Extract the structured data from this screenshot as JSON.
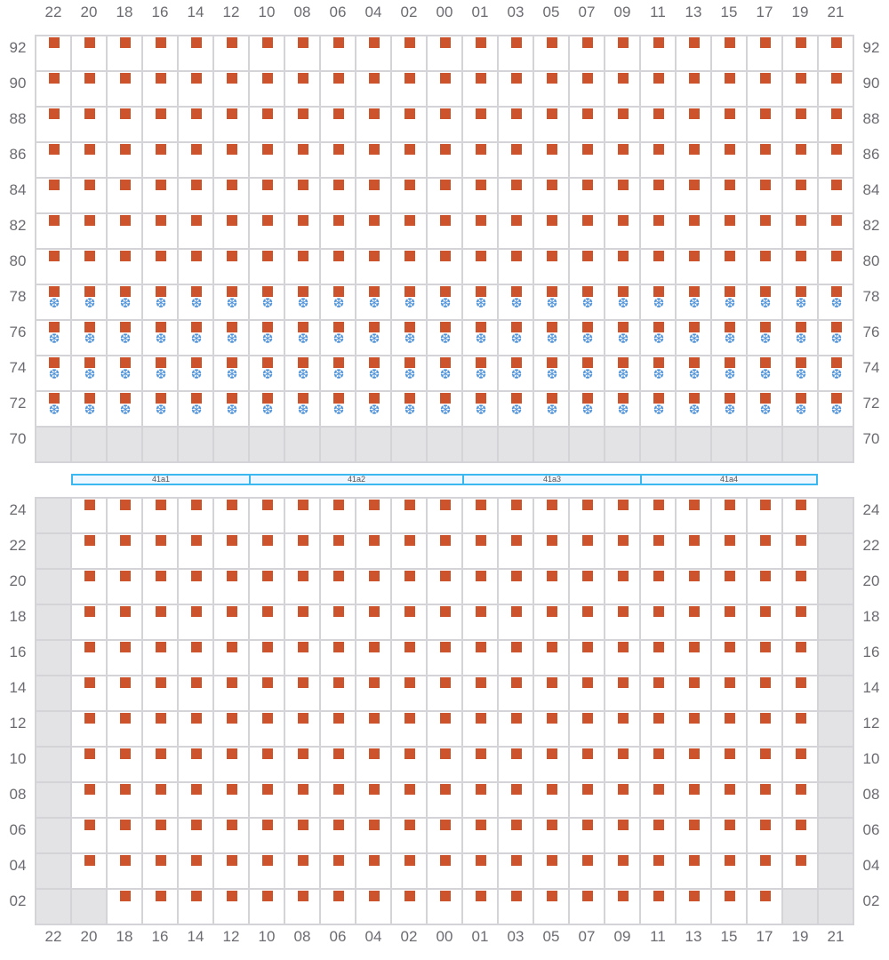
{
  "columns": [
    "22",
    "20",
    "18",
    "16",
    "14",
    "12",
    "10",
    "08",
    "06",
    "04",
    "02",
    "00",
    "01",
    "03",
    "05",
    "07",
    "09",
    "11",
    "13",
    "15",
    "17",
    "19",
    "21"
  ],
  "legend": {
    "m": "marker",
    "s": "marker+snowflake-icon",
    "g": "unavailable",
    "e": "empty"
  },
  "colors": {
    "marker": "#cc532b",
    "snowflake": "#4a90d9",
    "unavailable": "#e3e3e6",
    "band_border": "#3bb8f0"
  },
  "top": {
    "rows": [
      {
        "label": "92",
        "cells": "mmmmmmmmmmmmmmmmmmmmmmm"
      },
      {
        "label": "90",
        "cells": "mmmmmmmmmmmmmmmmmmmmmmm"
      },
      {
        "label": "88",
        "cells": "mmmmmmmmmmmmmmmmmmmmmmm"
      },
      {
        "label": "86",
        "cells": "mmmmmmmmmmmmmmmmmmmmmmm"
      },
      {
        "label": "84",
        "cells": "mmmmmmmmmmmmmmmmmmmmmmm"
      },
      {
        "label": "82",
        "cells": "mmmmmmmmmmmmmmmmmmmmmmm"
      },
      {
        "label": "80",
        "cells": "mmmmmmmmmmmmmmmmmmmmmmm"
      },
      {
        "label": "78",
        "cells": "sssssssssssssssssssssss"
      },
      {
        "label": "76",
        "cells": "sssssssssssssssssssssss"
      },
      {
        "label": "74",
        "cells": "sssssssssssssssssssssss"
      },
      {
        "label": "72",
        "cells": "sssssssssssssssssssssss"
      },
      {
        "label": "70",
        "cells": "ggggggggggggggggggggggg"
      }
    ]
  },
  "bands": [
    {
      "label": "41a1"
    },
    {
      "label": "41a2"
    },
    {
      "label": "41a3"
    },
    {
      "label": "41a4"
    }
  ],
  "bottom": {
    "rows": [
      {
        "label": "24",
        "cells": "gmmmmmmmmmmmmmmmmmmmmmg"
      },
      {
        "label": "22",
        "cells": "gmmmmmmmmmmmmmmmmmmmmmg"
      },
      {
        "label": "20",
        "cells": "gmmmmmmmmmmmmmmmmmmmmmg"
      },
      {
        "label": "18",
        "cells": "gmmmmmmmmmmmmmmmmmmmmmg"
      },
      {
        "label": "16",
        "cells": "gmmmmmmmmmmmmmmmmmmmmmg"
      },
      {
        "label": "14",
        "cells": "gmmmmmmmmmmmmmmmmmmmmmg"
      },
      {
        "label": "12",
        "cells": "gmmmmmmmmmmmmmmmmmmmmmg"
      },
      {
        "label": "10",
        "cells": "gmmmmmmmmmmmmmmmmmmmmmg"
      },
      {
        "label": "08",
        "cells": "gmmmmmmmmmmmmmmmmmmmmmg"
      },
      {
        "label": "06",
        "cells": "gmmmmmmmmmmmmmmmmmmmmmg"
      },
      {
        "label": "04",
        "cells": "gmmmmmmmmmmmmmmmmmmmmmg"
      },
      {
        "label": "02",
        "cells": "ggmmmmmmmmmmmmmmmmmmmgg"
      }
    ]
  }
}
